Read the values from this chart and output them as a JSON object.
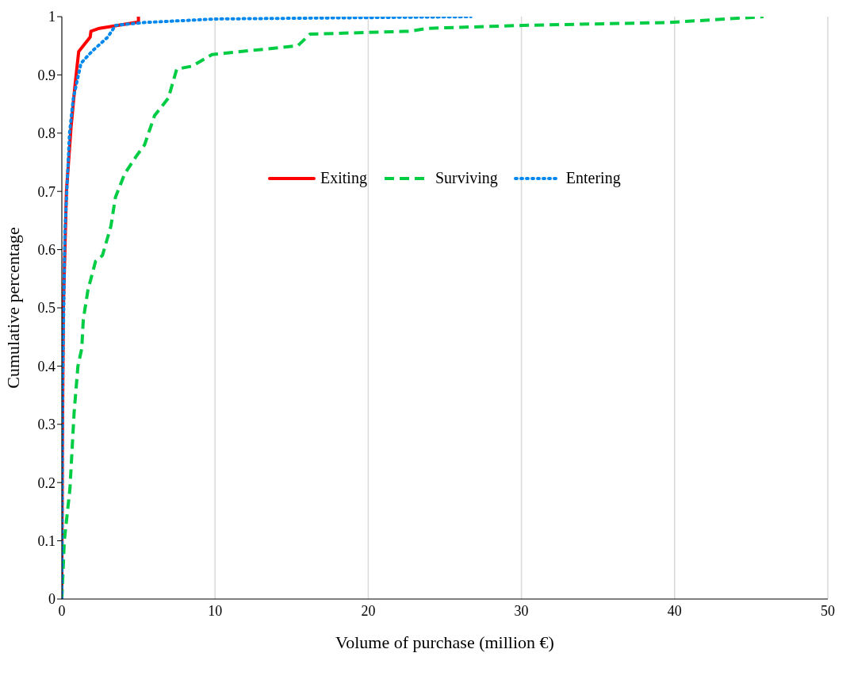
{
  "chart_data": {
    "type": "line",
    "xlabel": "Volume of purchase (million €)",
    "ylabel": "Cumulative percentage",
    "xlim": [
      0,
      50
    ],
    "xticks": [
      0,
      10,
      20,
      30,
      40,
      50
    ],
    "ylim": [
      0,
      1
    ],
    "yticks": [
      0,
      0.1,
      0.2,
      0.3,
      0.4,
      0.5,
      0.6,
      0.7,
      0.8,
      0.9,
      1
    ],
    "grid": "x",
    "legend": "center",
    "marker": "none",
    "series": [
      {
        "name": "Exiting",
        "color": "#ff0000",
        "line_style": "solid",
        "x": [
          0,
          0.03,
          0.1,
          0.3,
          0.6,
          0.85,
          1.1,
          1.85,
          1.9,
          2.45,
          4.85,
          5.0,
          5.0
        ],
        "values": [
          0,
          0.24,
          0.5,
          0.7,
          0.81,
          0.88,
          0.94,
          0.965,
          0.975,
          0.98,
          0.99,
          0.99,
          1.0
        ]
      },
      {
        "name": "Surviving",
        "color": "#00cc44",
        "line_style": "dashed",
        "x": [
          0,
          0.16,
          0.53,
          0.8,
          1.05,
          1.3,
          1.4,
          1.7,
          2.2,
          2.65,
          3.2,
          3.5,
          4.1,
          4.85,
          5.4,
          6.05,
          6.95,
          7.5,
          8.5,
          9.8,
          15.4,
          16.2,
          22.7,
          23.9,
          30.1,
          39.6,
          45.8
        ],
        "values": [
          0,
          0.1,
          0.19,
          0.32,
          0.4,
          0.43,
          0.48,
          0.53,
          0.58,
          0.59,
          0.64,
          0.69,
          0.73,
          0.76,
          0.78,
          0.83,
          0.86,
          0.91,
          0.915,
          0.935,
          0.95,
          0.97,
          0.975,
          0.98,
          0.985,
          0.99,
          1.0
        ]
      },
      {
        "name": "Entering",
        "color": "#0088ee",
        "line_style": "dotted",
        "x": [
          0,
          0.05,
          0.2,
          0.5,
          0.75,
          1.25,
          1.95,
          3.0,
          3.5,
          5.4,
          10,
          26.7
        ],
        "values": [
          0,
          0.37,
          0.63,
          0.8,
          0.86,
          0.92,
          0.94,
          0.965,
          0.985,
          0.99,
          0.996,
          1.0
        ]
      }
    ]
  }
}
